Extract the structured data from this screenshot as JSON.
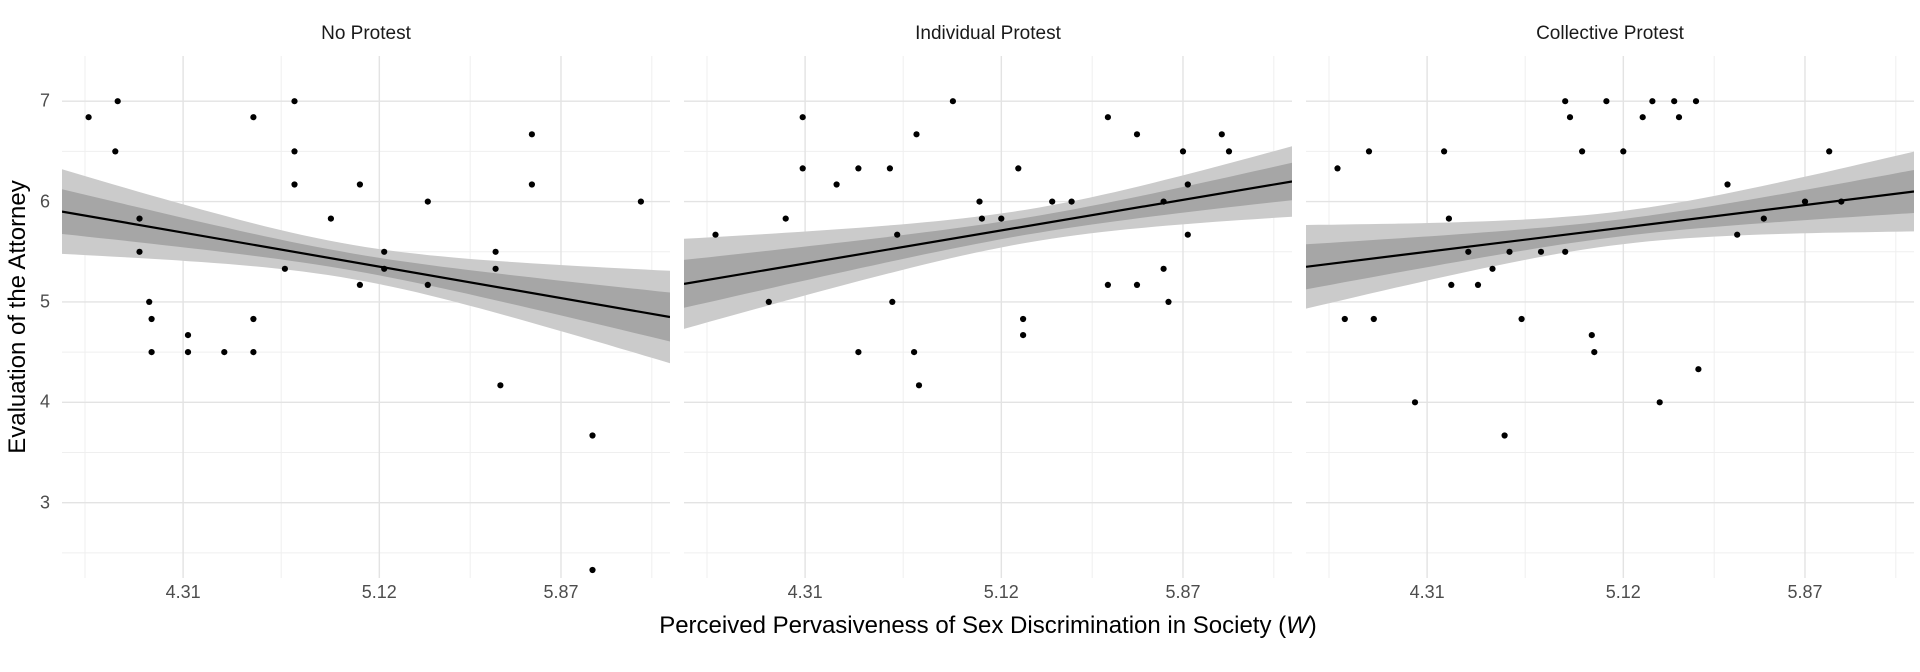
{
  "chart_data": {
    "type": "scatter",
    "title": "",
    "ylabel": "Evaluation of the Attorney",
    "xlabel": "Perceived Pervasiveness of Sex Discrimination in Society (W)",
    "xlabel_parts": {
      "prefix": "Perceived Pervasiveness of Sex Discrimination in Society (",
      "italic": "W",
      "suffix": ")"
    },
    "facets": [
      "No Protest",
      "Individual Protest",
      "Collective Protest"
    ],
    "x_ticks": [
      4.31,
      5.12,
      5.87
    ],
    "x_tick_labels": [
      "4.31",
      "5.12",
      "5.87"
    ],
    "x_minor_ticks": [
      3.905,
      4.715,
      5.495,
      6.245
    ],
    "y_ticks": [
      3,
      4,
      5,
      6,
      7
    ],
    "y_minor_ticks": [
      2.5,
      3.5,
      4.5,
      5.5,
      6.5
    ],
    "xlim": [
      3.81,
      6.32
    ],
    "ylim": [
      2.25,
      7.45
    ],
    "grid": true,
    "legend": "none",
    "point_color": "#000000",
    "line_color": "#000000",
    "outer_band_color": "#cbcbcb",
    "inner_band_color": "#a6a6a6",
    "grid_major_color": "#e3e3e3",
    "grid_minor_color": "#efefef",
    "panels": [
      {
        "title": "No Protest",
        "fit": {
          "x0": 3.81,
          "y0": 5.9,
          "x1": 6.32,
          "y1": 4.85,
          "band_center_x": 5.0,
          "outer_min_hw": 0.17,
          "outer_growth": 0.105,
          "inner_min_hw": 0.085,
          "inner_growth": 0.03
        },
        "points": [
          [
            3.92,
            6.84
          ],
          [
            4.04,
            7.0
          ],
          [
            4.03,
            6.5
          ],
          [
            4.13,
            5.83
          ],
          [
            4.13,
            5.5
          ],
          [
            4.17,
            5.0
          ],
          [
            4.18,
            4.83
          ],
          [
            4.18,
            4.5
          ],
          [
            4.33,
            4.67
          ],
          [
            4.33,
            4.5
          ],
          [
            4.48,
            4.5
          ],
          [
            4.6,
            6.84
          ],
          [
            4.6,
            4.83
          ],
          [
            4.6,
            4.5
          ],
          [
            4.77,
            7.0
          ],
          [
            4.77,
            6.5
          ],
          [
            4.77,
            6.17
          ],
          [
            4.73,
            5.33
          ],
          [
            4.92,
            5.83
          ],
          [
            5.04,
            6.17
          ],
          [
            5.04,
            5.17
          ],
          [
            5.14,
            5.5
          ],
          [
            5.14,
            5.33
          ],
          [
            5.32,
            6.0
          ],
          [
            5.32,
            5.17
          ],
          [
            5.6,
            5.5
          ],
          [
            5.6,
            5.33
          ],
          [
            5.62,
            4.17
          ],
          [
            5.75,
            6.67
          ],
          [
            5.75,
            6.17
          ],
          [
            6.0,
            3.67
          ],
          [
            6.0,
            2.33
          ],
          [
            6.2,
            6.0
          ]
        ]
      },
      {
        "title": "Individual Protest",
        "fit": {
          "x0": 3.81,
          "y0": 5.18,
          "x1": 6.32,
          "y1": 6.2,
          "band_center_x": 5.25,
          "outer_min_hw": 0.165,
          "outer_growth": 0.084,
          "inner_min_hw": 0.085,
          "inner_growth": 0.024
        },
        "points": [
          [
            3.94,
            5.67
          ],
          [
            4.16,
            5.0
          ],
          [
            4.23,
            5.83
          ],
          [
            4.3,
            6.84
          ],
          [
            4.3,
            6.33
          ],
          [
            4.44,
            6.17
          ],
          [
            4.53,
            6.33
          ],
          [
            4.53,
            4.5
          ],
          [
            4.66,
            6.33
          ],
          [
            4.67,
            5.0
          ],
          [
            4.69,
            5.67
          ],
          [
            4.77,
            6.67
          ],
          [
            4.76,
            4.5
          ],
          [
            4.78,
            4.17
          ],
          [
            4.92,
            7.0
          ],
          [
            5.03,
            6.0
          ],
          [
            5.04,
            5.83
          ],
          [
            5.12,
            5.83
          ],
          [
            5.19,
            6.33
          ],
          [
            5.21,
            4.83
          ],
          [
            5.21,
            4.67
          ],
          [
            5.33,
            6.0
          ],
          [
            5.41,
            6.0
          ],
          [
            5.56,
            6.84
          ],
          [
            5.56,
            5.17
          ],
          [
            5.68,
            6.67
          ],
          [
            5.68,
            5.17
          ],
          [
            5.79,
            6.0
          ],
          [
            5.79,
            5.33
          ],
          [
            5.81,
            5.0
          ],
          [
            5.87,
            6.5
          ],
          [
            5.89,
            6.17
          ],
          [
            5.89,
            5.67
          ],
          [
            6.03,
            6.67
          ],
          [
            6.06,
            6.5
          ]
        ]
      },
      {
        "title": "Collective Protest",
        "fit": {
          "x0": 3.81,
          "y0": 5.35,
          "x1": 6.32,
          "y1": 6.1,
          "band_center_x": 5.1,
          "outer_min_hw": 0.165,
          "outer_growth": 0.088,
          "inner_min_hw": 0.085,
          "inner_growth": 0.026
        },
        "points": [
          [
            3.94,
            6.33
          ],
          [
            3.97,
            4.83
          ],
          [
            4.07,
            6.5
          ],
          [
            4.09,
            4.83
          ],
          [
            4.26,
            4.0
          ],
          [
            4.38,
            6.5
          ],
          [
            4.4,
            5.83
          ],
          [
            4.41,
            5.17
          ],
          [
            4.48,
            5.5
          ],
          [
            4.52,
            5.17
          ],
          [
            4.58,
            5.33
          ],
          [
            4.63,
            3.67
          ],
          [
            4.65,
            5.5
          ],
          [
            4.7,
            4.83
          ],
          [
            4.78,
            5.5
          ],
          [
            4.88,
            7.0
          ],
          [
            4.9,
            6.84
          ],
          [
            4.88,
            5.5
          ],
          [
            4.95,
            6.5
          ],
          [
            4.99,
            4.67
          ],
          [
            5.0,
            4.5
          ],
          [
            5.05,
            7.0
          ],
          [
            5.12,
            6.5
          ],
          [
            5.2,
            6.84
          ],
          [
            5.24,
            7.0
          ],
          [
            5.27,
            4.0
          ],
          [
            5.33,
            7.0
          ],
          [
            5.35,
            6.84
          ],
          [
            5.42,
            7.0
          ],
          [
            5.43,
            4.33
          ],
          [
            5.55,
            6.17
          ],
          [
            5.59,
            5.67
          ],
          [
            5.7,
            5.83
          ],
          [
            5.87,
            6.0
          ],
          [
            5.97,
            6.5
          ],
          [
            6.02,
            6.0
          ]
        ]
      }
    ]
  }
}
